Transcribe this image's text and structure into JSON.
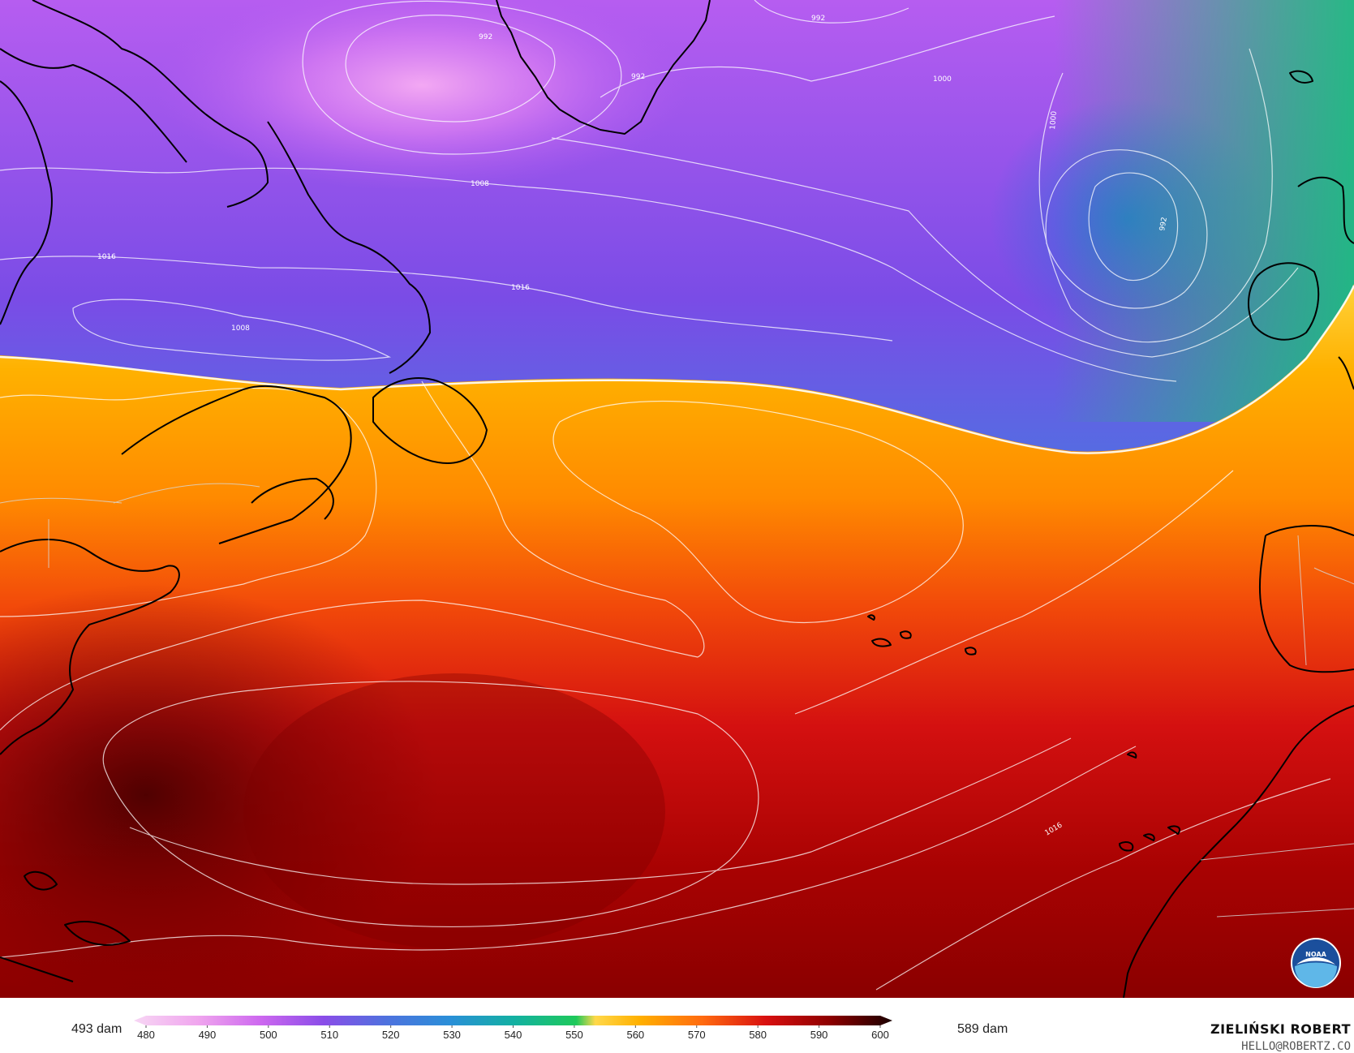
{
  "colorbar": {
    "min_label": "493 dam",
    "max_label": "589 dam",
    "ticks": [
      "480",
      "490",
      "500",
      "510",
      "520",
      "530",
      "540",
      "550",
      "560",
      "570",
      "580",
      "590",
      "600"
    ],
    "stops": [
      {
        "value": 480,
        "color": "#f7d6f4"
      },
      {
        "value": 490,
        "color": "#f0a6ee"
      },
      {
        "value": 500,
        "color": "#cd68ef"
      },
      {
        "value": 510,
        "color": "#8a4de8"
      },
      {
        "value": 520,
        "color": "#4e72de"
      },
      {
        "value": 530,
        "color": "#2a8fd8"
      },
      {
        "value": 540,
        "color": "#13b0a3"
      },
      {
        "value": 550,
        "color": "#1ec95a"
      },
      {
        "value": 553,
        "color": "#ffd84a"
      },
      {
        "value": 560,
        "color": "#ffb000"
      },
      {
        "value": 570,
        "color": "#ff6a10"
      },
      {
        "value": 580,
        "color": "#d81010"
      },
      {
        "value": 590,
        "color": "#8e0000"
      },
      {
        "value": 600,
        "color": "#1a0000"
      }
    ]
  },
  "isobar_labels": [
    "992",
    "992",
    "992",
    "1000",
    "1000",
    "992",
    "1008",
    "1016",
    "1016",
    "1008",
    "1016"
  ],
  "credit": {
    "name": "ZIELIŃSKI ROBERT",
    "email": "HELLO@ROBERTZ.CO"
  },
  "logo": {
    "icon": "noaa-logo",
    "text": "NOAA",
    "colors": {
      "outer": "#1b4f9c",
      "inner": "#5fb7e8",
      "bird": "#ffffff"
    }
  }
}
